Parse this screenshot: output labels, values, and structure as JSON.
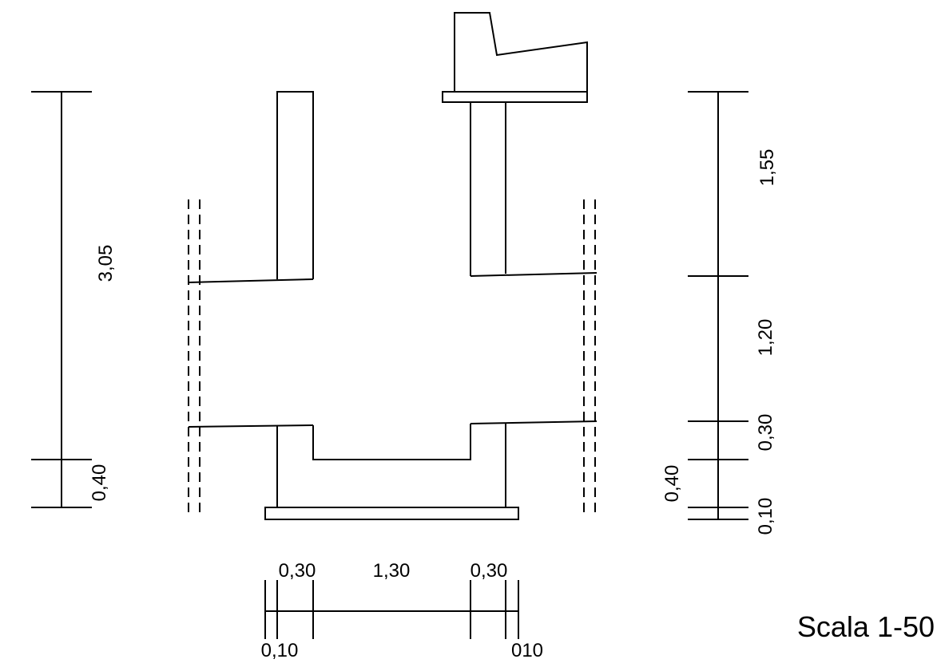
{
  "drawing": {
    "left_height_dims": {
      "total": "3,05",
      "footing": "0,40"
    },
    "right_height_dims": {
      "upper": "1,55",
      "middle": "1,20",
      "step": "0,30",
      "base": "0,40",
      "slab": "0,10"
    },
    "bottom_width_dims": {
      "left_wall": "0,30",
      "channel": "1,30",
      "right_wall": "0,30",
      "left_slab": "0,10",
      "right_slab": "010"
    },
    "scale_label": "Scala 1-50"
  }
}
